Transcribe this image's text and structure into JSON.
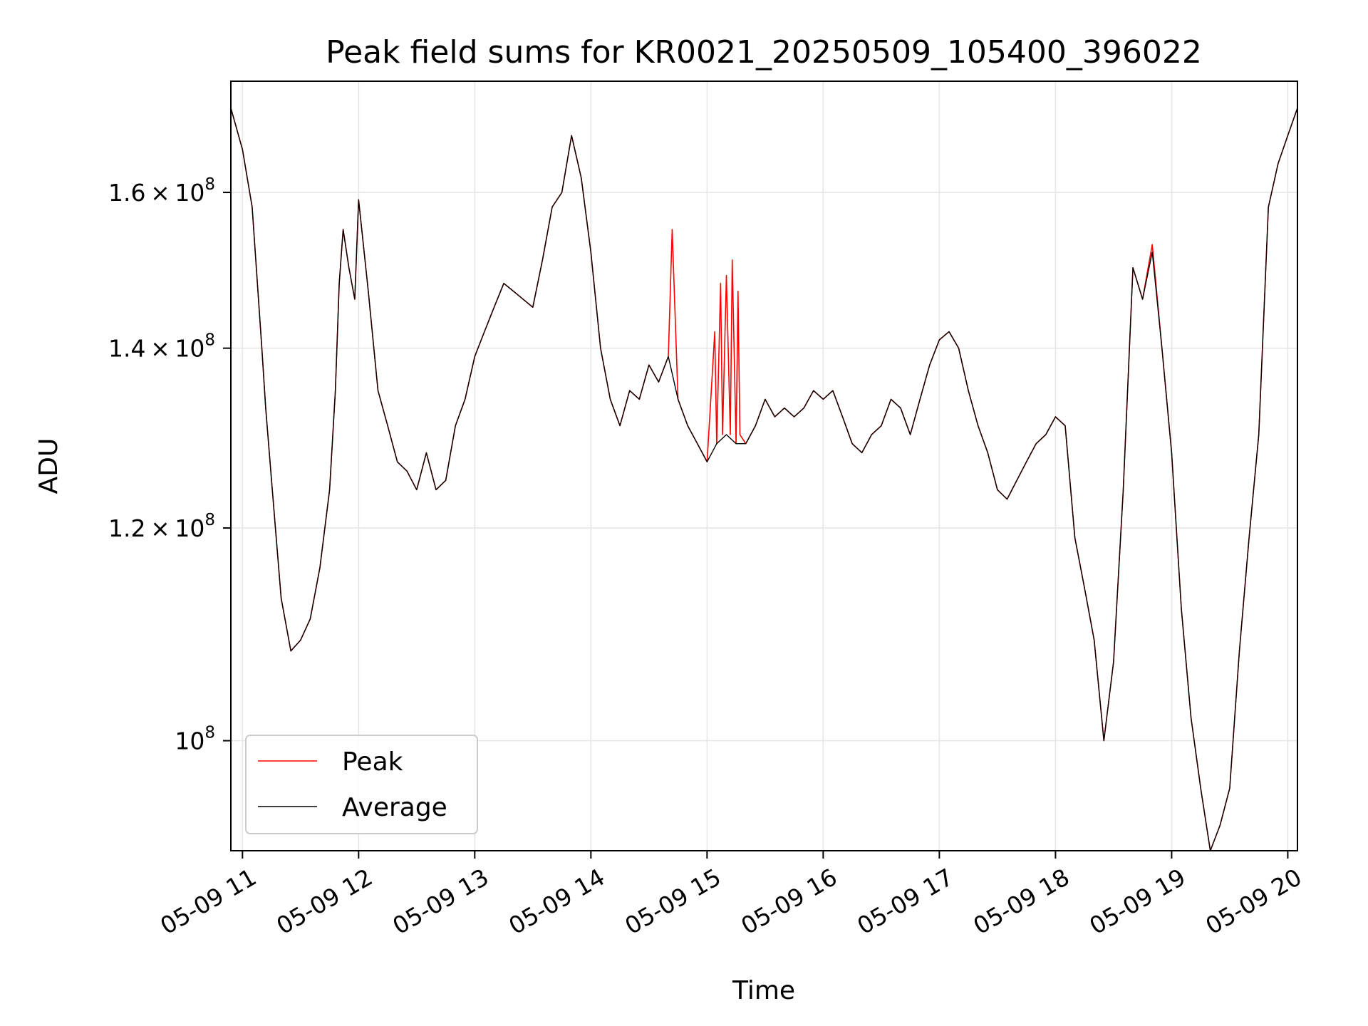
{
  "chart_data": {
    "type": "line",
    "title": "Peak field sums for KR0021_20250509_105400_396022",
    "xlabel": "Time",
    "ylabel": "ADU",
    "y_scale": "log",
    "xlim": [
      "05-09 10:54",
      "05-09 20:05"
    ],
    "ylim": [
      91000000,
      176000000
    ],
    "grid": true,
    "legend_position": "lower-left",
    "x_ticks": [
      "05-09 11",
      "05-09 12",
      "05-09 13",
      "05-09 14",
      "05-09 15",
      "05-09 16",
      "05-09 17",
      "05-09 18",
      "05-09 19",
      "05-09 20"
    ],
    "y_ticks": [
      {
        "value": 100000000,
        "mantissa": "",
        "exponent": "8"
      },
      {
        "value": 120000000,
        "mantissa": "1.2",
        "exponent": "8"
      },
      {
        "value": 140000000,
        "mantissa": "1.4",
        "exponent": "8"
      },
      {
        "value": 160000000,
        "mantissa": "1.6",
        "exponent": "8"
      }
    ],
    "series": [
      {
        "name": "Average",
        "color": "#000000",
        "x": [
          "05-09 10:54",
          "05-09 11:00",
          "05-09 11:05",
          "05-09 11:10",
          "05-09 11:12",
          "05-09 11:15",
          "05-09 11:20",
          "05-09 11:25",
          "05-09 11:30",
          "05-09 11:35",
          "05-09 11:40",
          "05-09 11:45",
          "05-09 11:48",
          "05-09 11:50",
          "05-09 11:52",
          "05-09 11:55",
          "05-09 11:58",
          "05-09 12:00",
          "05-09 12:05",
          "05-09 12:10",
          "05-09 12:15",
          "05-09 12:20",
          "05-09 12:25",
          "05-09 12:30",
          "05-09 12:35",
          "05-09 12:40",
          "05-09 12:45",
          "05-09 12:50",
          "05-09 12:55",
          "05-09 13:00",
          "05-09 13:05",
          "05-09 13:10",
          "05-09 13:15",
          "05-09 13:20",
          "05-09 13:25",
          "05-09 13:30",
          "05-09 13:35",
          "05-09 13:40",
          "05-09 13:45",
          "05-09 13:50",
          "05-09 13:55",
          "05-09 14:00",
          "05-09 14:05",
          "05-09 14:10",
          "05-09 14:15",
          "05-09 14:20",
          "05-09 14:25",
          "05-09 14:30",
          "05-09 14:35",
          "05-09 14:40",
          "05-09 14:45",
          "05-09 14:50",
          "05-09 14:55",
          "05-09 15:00",
          "05-09 15:05",
          "05-09 15:10",
          "05-09 15:15",
          "05-09 15:20",
          "05-09 15:25",
          "05-09 15:30",
          "05-09 15:35",
          "05-09 15:40",
          "05-09 15:45",
          "05-09 15:50",
          "05-09 15:55",
          "05-09 16:00",
          "05-09 16:05",
          "05-09 16:10",
          "05-09 16:15",
          "05-09 16:20",
          "05-09 16:25",
          "05-09 16:30",
          "05-09 16:35",
          "05-09 16:40",
          "05-09 16:45",
          "05-09 16:50",
          "05-09 16:55",
          "05-09 17:00",
          "05-09 17:05",
          "05-09 17:10",
          "05-09 17:15",
          "05-09 17:20",
          "05-09 17:25",
          "05-09 17:30",
          "05-09 17:35",
          "05-09 17:40",
          "05-09 17:45",
          "05-09 17:50",
          "05-09 17:55",
          "05-09 18:00",
          "05-09 18:05",
          "05-09 18:10",
          "05-09 18:15",
          "05-09 18:20",
          "05-09 18:25",
          "05-09 18:30",
          "05-09 18:35",
          "05-09 18:40",
          "05-09 18:45",
          "05-09 18:50",
          "05-09 18:55",
          "05-09 19:00",
          "05-09 19:05",
          "05-09 19:10",
          "05-09 19:15",
          "05-09 19:20",
          "05-09 19:25",
          "05-09 19:30",
          "05-09 19:35",
          "05-09 19:40",
          "05-09 19:45",
          "05-09 19:50",
          "05-09 19:55",
          "05-09 20:00",
          "05-09 20:05"
        ],
        "values": [
          172000000,
          166000000,
          158000000,
          140000000,
          133000000,
          125000000,
          113000000,
          108000000,
          109000000,
          111000000,
          116000000,
          124000000,
          135000000,
          148000000,
          155000000,
          150000000,
          146000000,
          159000000,
          147000000,
          135000000,
          131000000,
          127000000,
          126000000,
          124000000,
          128000000,
          124000000,
          125000000,
          131000000,
          134000000,
          139000000,
          142000000,
          145000000,
          148000000,
          147000000,
          146000000,
          145000000,
          151000000,
          158000000,
          160000000,
          168000000,
          162000000,
          152000000,
          140000000,
          134000000,
          131000000,
          135000000,
          134000000,
          138000000,
          136000000,
          139000000,
          134000000,
          131000000,
          129000000,
          127000000,
          129000000,
          130000000,
          129000000,
          129000000,
          131000000,
          134000000,
          132000000,
          133000000,
          132000000,
          133000000,
          135000000,
          134000000,
          135000000,
          132000000,
          129000000,
          128000000,
          130000000,
          131000000,
          134000000,
          133000000,
          130000000,
          134000000,
          138000000,
          141000000,
          142000000,
          140000000,
          135000000,
          131000000,
          128000000,
          124000000,
          123000000,
          125000000,
          127000000,
          129000000,
          130000000,
          132000000,
          131000000,
          119000000,
          114000000,
          109000000,
          100000000,
          107000000,
          124000000,
          150000000,
          146000000,
          152000000,
          140000000,
          128000000,
          112000000,
          102000000,
          96000000,
          91000000,
          93000000,
          96000000,
          108000000,
          119000000,
          130000000,
          158000000,
          164000000,
          168000000,
          172000000
        ]
      },
      {
        "name": "Peak",
        "color": "#ff0000",
        "x": [
          "05-09 10:54",
          "05-09 11:00",
          "05-09 11:05",
          "05-09 11:10",
          "05-09 11:12",
          "05-09 11:15",
          "05-09 11:20",
          "05-09 11:25",
          "05-09 11:30",
          "05-09 11:35",
          "05-09 11:40",
          "05-09 11:45",
          "05-09 11:48",
          "05-09 11:50",
          "05-09 11:52",
          "05-09 11:55",
          "05-09 11:58",
          "05-09 12:00",
          "05-09 12:05",
          "05-09 12:10",
          "05-09 12:15",
          "05-09 12:20",
          "05-09 12:25",
          "05-09 12:30",
          "05-09 12:35",
          "05-09 12:40",
          "05-09 12:45",
          "05-09 12:50",
          "05-09 12:55",
          "05-09 13:00",
          "05-09 13:05",
          "05-09 13:10",
          "05-09 13:15",
          "05-09 13:20",
          "05-09 13:25",
          "05-09 13:30",
          "05-09 13:35",
          "05-09 13:40",
          "05-09 13:45",
          "05-09 13:50",
          "05-09 13:55",
          "05-09 14:00",
          "05-09 14:05",
          "05-09 14:10",
          "05-09 14:15",
          "05-09 14:20",
          "05-09 14:25",
          "05-09 14:30",
          "05-09 14:35",
          "05-09 14:40",
          "05-09 14:42",
          "05-09 14:45",
          "05-09 14:50",
          "05-09 14:55",
          "05-09 15:00",
          "05-09 15:04",
          "05-09 15:05",
          "05-09 15:07",
          "05-09 15:08",
          "05-09 15:10",
          "05-09 15:12",
          "05-09 15:13",
          "05-09 15:15",
          "05-09 15:16",
          "05-09 15:17",
          "05-09 15:20",
          "05-09 15:25",
          "05-09 15:30",
          "05-09 15:35",
          "05-09 15:40",
          "05-09 15:45",
          "05-09 15:50",
          "05-09 15:55",
          "05-09 16:00",
          "05-09 16:05",
          "05-09 16:10",
          "05-09 16:15",
          "05-09 16:20",
          "05-09 16:25",
          "05-09 16:30",
          "05-09 16:35",
          "05-09 16:40",
          "05-09 16:45",
          "05-09 16:50",
          "05-09 16:55",
          "05-09 17:00",
          "05-09 17:05",
          "05-09 17:10",
          "05-09 17:15",
          "05-09 17:20",
          "05-09 17:25",
          "05-09 17:30",
          "05-09 17:35",
          "05-09 17:40",
          "05-09 17:45",
          "05-09 17:50",
          "05-09 17:55",
          "05-09 18:00",
          "05-09 18:05",
          "05-09 18:10",
          "05-09 18:15",
          "05-09 18:20",
          "05-09 18:25",
          "05-09 18:30",
          "05-09 18:35",
          "05-09 18:40",
          "05-09 18:45",
          "05-09 18:50",
          "05-09 18:55",
          "05-09 19:00",
          "05-09 19:05",
          "05-09 19:10",
          "05-09 19:15",
          "05-09 19:20",
          "05-09 19:25",
          "05-09 19:30",
          "05-09 19:35",
          "05-09 19:40",
          "05-09 19:45",
          "05-09 19:50",
          "05-09 19:55",
          "05-09 20:00",
          "05-09 20:05"
        ],
        "values": [
          172000000,
          166000000,
          158000000,
          140000000,
          133000000,
          125000000,
          113000000,
          108000000,
          109000000,
          111000000,
          116000000,
          124000000,
          135000000,
          148000000,
          155000000,
          150000000,
          146000000,
          159000000,
          147000000,
          135000000,
          131000000,
          127000000,
          126000000,
          124000000,
          128000000,
          124000000,
          125000000,
          131000000,
          134000000,
          139000000,
          142000000,
          145000000,
          148000000,
          147000000,
          146000000,
          145000000,
          151000000,
          158000000,
          160000000,
          168000000,
          162000000,
          152000000,
          140000000,
          134000000,
          131000000,
          135000000,
          134000000,
          138000000,
          136000000,
          139000000,
          155000000,
          134000000,
          131000000,
          129000000,
          127000000,
          142000000,
          129000000,
          148000000,
          130000000,
          149000000,
          130000000,
          151000000,
          129000000,
          147000000,
          130000000,
          129000000,
          131000000,
          134000000,
          132000000,
          133000000,
          132000000,
          133000000,
          135000000,
          134000000,
          135000000,
          132000000,
          129000000,
          128000000,
          130000000,
          131000000,
          134000000,
          133000000,
          130000000,
          134000000,
          138000000,
          141000000,
          142000000,
          140000000,
          135000000,
          131000000,
          128000000,
          124000000,
          123000000,
          125000000,
          127000000,
          129000000,
          130000000,
          132000000,
          131000000,
          119000000,
          114000000,
          109000000,
          100000000,
          107000000,
          124000000,
          150000000,
          146000000,
          153000000,
          140000000,
          128000000,
          112000000,
          102000000,
          96000000,
          91000000,
          93000000,
          96000000,
          108000000,
          119000000,
          130000000,
          158000000,
          164000000,
          168000000,
          172000000
        ]
      }
    ],
    "legend": [
      {
        "label": "Peak",
        "color": "#ff0000"
      },
      {
        "label": "Average",
        "color": "#000000"
      }
    ]
  }
}
